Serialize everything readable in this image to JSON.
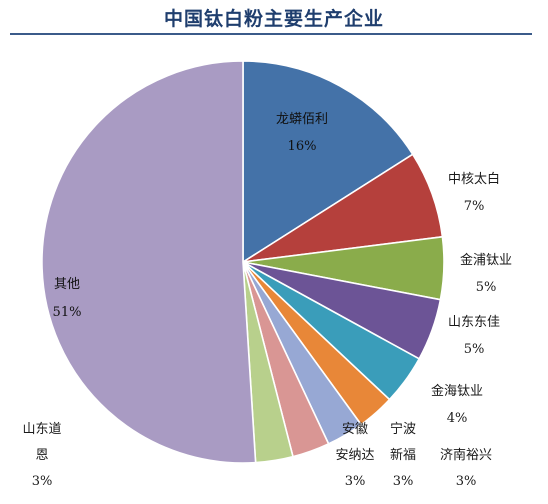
{
  "chart_data": {
    "type": "pie",
    "title": "中国钛白粉主要生产企业",
    "slices": [
      {
        "name": "龙蟒佰利",
        "value": 16,
        "label": "16%",
        "color": "#4472a8"
      },
      {
        "name": "中核太白",
        "value": 7,
        "label": "7%",
        "color": "#b5403c"
      },
      {
        "name": "金浦钛业",
        "value": 5,
        "label": "5%",
        "color": "#8aac4b"
      },
      {
        "name": "山东东佳",
        "value": 5,
        "label": "5%",
        "color": "#6c5496"
      },
      {
        "name": "金海钛业",
        "value": 4,
        "label": "4%",
        "color": "#3a9dba"
      },
      {
        "name": "宁波新福",
        "value": 3,
        "label": "3%",
        "color": "#e88738"
      },
      {
        "name": "济南裕兴",
        "value": 3,
        "label": "3%",
        "color": "#97a8d4"
      },
      {
        "name": "安徽安纳达",
        "value": 3,
        "label": "3%",
        "color": "#d99694"
      },
      {
        "name": "山东道恩",
        "value": 3,
        "label": "3%",
        "color": "#b8d08c"
      },
      {
        "name": "其他",
        "value": 51,
        "label": "51%",
        "color": "#a99bc3"
      }
    ],
    "legend": "none",
    "start_angle": "12 o'clock",
    "direction": "clockwise"
  }
}
